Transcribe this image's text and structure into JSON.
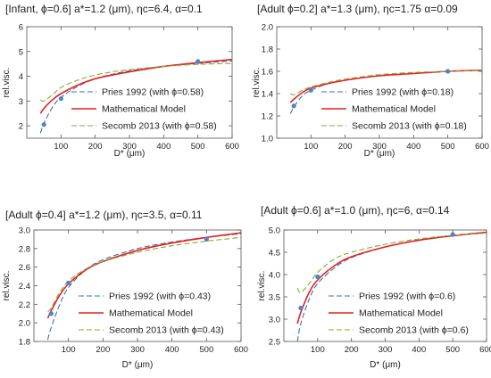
{
  "chart_data": [
    {
      "type": "line",
      "title": "[Infant, ϕ=0.6] a*=1.2 (μm),   ηc=6.4, α=0.1",
      "xlabel": "D* (μm)",
      "ylabel": "rel.visc.",
      "xlim": [
        0,
        600
      ],
      "ylim": [
        1.5,
        6
      ],
      "xticks": [
        100,
        200,
        300,
        400,
        500,
        600
      ],
      "yticks": [
        2,
        3,
        4,
        5,
        6
      ],
      "legend_position": "bottom-right",
      "series": [
        {
          "name": "Pries 1992   (with ϕ=0.58)",
          "color": "#3d6fb6",
          "dash": "dashed",
          "x": [
            40,
            50,
            75,
            100,
            150,
            200,
            250,
            300,
            400,
            500,
            600
          ],
          "y": [
            1.7,
            2.1,
            2.75,
            3.15,
            3.6,
            3.9,
            4.08,
            4.22,
            4.4,
            4.52,
            4.62
          ]
        },
        {
          "name": "Mathematical Model",
          "color": "#e8201c",
          "dash": "solid",
          "x": [
            40,
            50,
            75,
            100,
            150,
            200,
            250,
            300,
            400,
            500,
            600
          ],
          "y": [
            2.5,
            2.7,
            3.05,
            3.3,
            3.65,
            3.9,
            4.05,
            4.18,
            4.4,
            4.55,
            4.68
          ]
        },
        {
          "name": "Secomb 2013   (with ϕ=0.58)",
          "color": "#8aa83a",
          "dash": "dashed",
          "x": [
            40,
            50,
            75,
            100,
            150,
            200,
            250,
            300,
            400,
            500,
            600
          ],
          "y": [
            3.05,
            3.0,
            3.25,
            3.55,
            3.85,
            4.05,
            4.18,
            4.27,
            4.4,
            4.48,
            4.52
          ]
        }
      ],
      "points": {
        "color": "#4f84c4",
        "x": [
          50,
          100,
          500
        ],
        "y": [
          2.05,
          3.1,
          4.6
        ]
      }
    },
    {
      "type": "line",
      "title": "[Adult ϕ=0.2] a*=1.3 (μm),   ηc=1.75  α=0.09",
      "xlabel": "D* (μm)",
      "ylabel": "rel.visc.",
      "xlim": [
        0,
        600
      ],
      "ylim": [
        1.0,
        2.0
      ],
      "xticks": [
        100,
        200,
        300,
        400,
        500,
        600
      ],
      "yticks": [
        1.0,
        1.2,
        1.4,
        1.6,
        1.8,
        2.0
      ],
      "legend_position": "bottom-right",
      "series": [
        {
          "name": "Pries 1992   (with ϕ=0.18)",
          "color": "#3d6fb6",
          "dash": "dashed",
          "x": [
            40,
            50,
            75,
            100,
            150,
            200,
            300,
            400,
            500,
            600
          ],
          "y": [
            1.22,
            1.28,
            1.38,
            1.43,
            1.49,
            1.52,
            1.56,
            1.58,
            1.6,
            1.61
          ]
        },
        {
          "name": "Mathematical Model",
          "color": "#e8201c",
          "dash": "solid",
          "x": [
            40,
            50,
            75,
            100,
            150,
            200,
            300,
            400,
            500,
            600
          ],
          "y": [
            1.32,
            1.35,
            1.41,
            1.45,
            1.49,
            1.52,
            1.56,
            1.58,
            1.6,
            1.61
          ]
        },
        {
          "name": "Secomb 2013   (with ϕ=0.18)",
          "color": "#8aa83a",
          "dash": "dashed",
          "x": [
            40,
            50,
            75,
            100,
            150,
            200,
            300,
            400,
            500,
            600
          ],
          "y": [
            1.4,
            1.39,
            1.43,
            1.46,
            1.5,
            1.53,
            1.57,
            1.59,
            1.6,
            1.61
          ]
        }
      ],
      "points": {
        "color": "#4f84c4",
        "x": [
          50,
          100,
          500
        ],
        "y": [
          1.29,
          1.43,
          1.6
        ]
      }
    },
    {
      "type": "line",
      "title": "[Adult ϕ=0.4] a*=1.2 (μm),   ηc=3.5,  α=0.11",
      "xlabel": "D* (μm)",
      "ylabel": "rel.visc.",
      "xlim": [
        0,
        600
      ],
      "ylim": [
        1.8,
        3.0
      ],
      "xticks": [
        100,
        200,
        300,
        400,
        500,
        600
      ],
      "yticks": [
        1.8,
        2.0,
        2.2,
        2.4,
        2.6,
        2.8,
        3.0
      ],
      "legend_position": "bottom-right",
      "series": [
        {
          "name": "Pries 1992   (with ϕ=0.43)",
          "color": "#3d6fb6",
          "dash": "dashed",
          "x": [
            40,
            50,
            75,
            100,
            150,
            200,
            300,
            400,
            500,
            600
          ],
          "y": [
            1.82,
            1.95,
            2.2,
            2.38,
            2.57,
            2.68,
            2.8,
            2.87,
            2.92,
            2.96
          ]
        },
        {
          "name": "Mathematical Model",
          "color": "#e8201c",
          "dash": "solid",
          "x": [
            40,
            50,
            75,
            100,
            150,
            200,
            300,
            400,
            500,
            600
          ],
          "y": [
            2.05,
            2.13,
            2.3,
            2.42,
            2.57,
            2.66,
            2.78,
            2.86,
            2.92,
            2.97
          ]
        },
        {
          "name": "Secomb 2013   (with ϕ=0.43)",
          "color": "#8aa83a",
          "dash": "dashed",
          "x": [
            40,
            50,
            75,
            100,
            150,
            200,
            300,
            400,
            500,
            600
          ],
          "y": [
            2.12,
            2.16,
            2.33,
            2.45,
            2.58,
            2.66,
            2.76,
            2.83,
            2.88,
            2.92
          ]
        }
      ],
      "points": {
        "color": "#4f84c4",
        "x": [
          50,
          100,
          500
        ],
        "y": [
          2.1,
          2.43,
          2.9
        ]
      }
    },
    {
      "type": "line",
      "title": "[Adult ϕ=0.6] a*=1.0 (μm),   ηc=6,   α=0.14",
      "xlabel": "D* (μm)",
      "ylabel": "rel.visc.",
      "xlim": [
        0,
        600
      ],
      "ylim": [
        2.5,
        5.0
      ],
      "xticks": [
        100,
        200,
        300,
        400,
        500,
        600
      ],
      "yticks": [
        2.5,
        3.0,
        3.5,
        4.0,
        4.5,
        5.0
      ],
      "legend_position": "bottom-right",
      "series": [
        {
          "name": "Pries 1992   (with ϕ=0.6)",
          "color": "#3d6fb6",
          "dash": "dashed",
          "x": [
            40,
            50,
            75,
            100,
            150,
            200,
            300,
            400,
            500,
            600
          ],
          "y": [
            2.5,
            2.9,
            3.45,
            3.8,
            4.15,
            4.38,
            4.62,
            4.78,
            4.88,
            4.95
          ]
        },
        {
          "name": "Mathematical Model",
          "color": "#e8201c",
          "dash": "solid",
          "x": [
            40,
            50,
            75,
            100,
            150,
            200,
            300,
            400,
            500,
            600
          ],
          "y": [
            2.9,
            3.15,
            3.6,
            3.88,
            4.2,
            4.4,
            4.62,
            4.77,
            4.87,
            4.95
          ]
        },
        {
          "name": "Secomb 2013   (with ϕ=0.6)",
          "color": "#8aa83a",
          "dash": "dashed",
          "x": [
            40,
            50,
            75,
            100,
            150,
            200,
            300,
            400,
            500,
            600
          ],
          "y": [
            3.7,
            3.6,
            3.8,
            4.05,
            4.35,
            4.5,
            4.68,
            4.8,
            4.88,
            4.93
          ]
        }
      ],
      "points": {
        "color": "#4f84c4",
        "x": [
          50,
          100,
          500
        ],
        "y": [
          3.25,
          3.95,
          4.9
        ]
      }
    }
  ]
}
